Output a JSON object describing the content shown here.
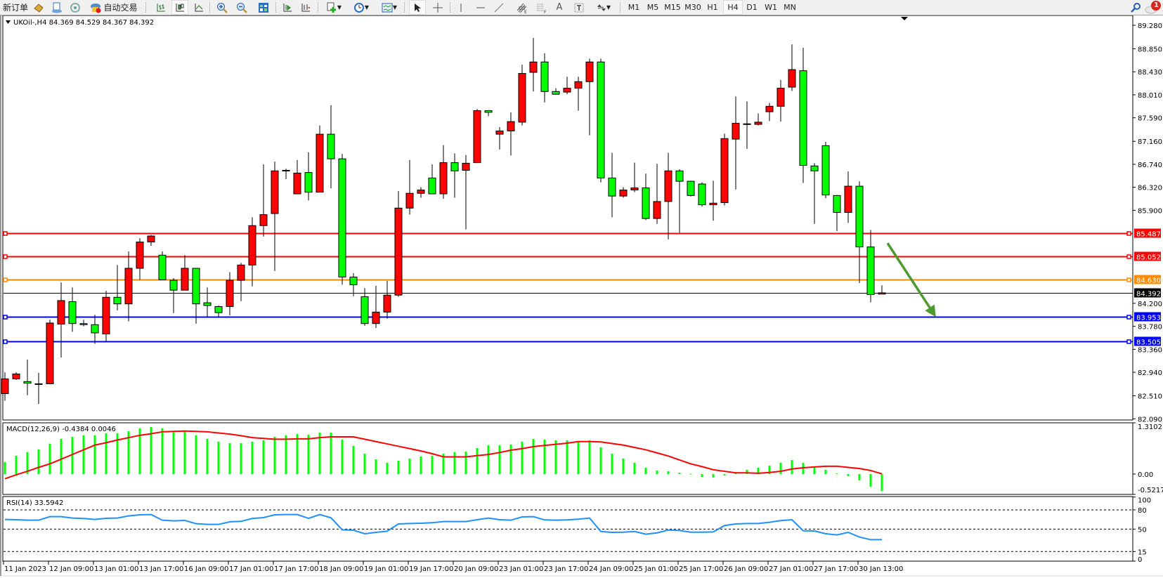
{
  "toolbar": {
    "new_order": "新订单",
    "auto_trading": "自动交易",
    "timeframes": [
      "M1",
      "M5",
      "M15",
      "M30",
      "H1",
      "H4",
      "D1",
      "W1",
      "MN"
    ],
    "selected_timeframe": "H4",
    "notification_count": "1",
    "icons": [
      "market-watch-icon",
      "navigator-icon",
      "signals-icon",
      "autotrading-icon",
      "bar-chart-icon",
      "candlestick-icon",
      "line-chart-icon",
      "zoom-in-icon",
      "zoom-out-icon",
      "tile-windows-icon",
      "auto-scroll-icon",
      "chart-shift-icon",
      "templates-icon",
      "periods-icon",
      "indicators-icon",
      "cursor-icon",
      "crosshair-icon",
      "vertical-line-icon",
      "horizontal-line-icon",
      "trendline-icon",
      "fibonacci-channel-icon",
      "fibonacci-fan-icon",
      "text-icon",
      "text-label-icon",
      "arrows-icon",
      "search-icon",
      "chat-icon"
    ]
  },
  "chart_data": {
    "type": "candlestick",
    "title": "UKOil-,H4  84.369 84.529 84.367 84.392",
    "symbol": "UKOil-",
    "timeframe": "H4",
    "ohlc_format": [
      "open",
      "high",
      "low",
      "close"
    ],
    "colors": {
      "bull": "#FF0000",
      "bear": "#00FF00",
      "outline": "#000000"
    },
    "ylim": [
      82.09,
      89.28
    ],
    "price_ticks": [
      "89.280",
      "88.850",
      "88.430",
      "88.010",
      "87.590",
      "87.160",
      "86.740",
      "86.320",
      "85.900",
      "84.200",
      "83.780",
      "83.360",
      "82.940",
      "82.510",
      "82.090"
    ],
    "x_labels": [
      "11 Jan 2023",
      "12 Jan 09:00",
      "13 Jan 01:00",
      "13 Jan 17:00",
      "16 Jan 09:00",
      "17 Jan 01:00",
      "17 Jan 17:00",
      "18 Jan 09:00",
      "19 Jan 01:00",
      "19 Jan 17:00",
      "20 Jan 09:00",
      "23 Jan 01:00",
      "23 Jan 17:00",
      "24 Jan 09:00",
      "25 Jan 01:00",
      "25 Jan 17:00",
      "26 Jan 09:00",
      "27 Jan 01:00",
      "27 Jan 17:00",
      "30 Jan 13:00"
    ],
    "candles": [
      [
        82.55,
        82.94,
        82.42,
        82.82
      ],
      [
        82.82,
        82.94,
        82.8,
        82.91
      ],
      [
        82.77,
        83.17,
        82.52,
        82.74
      ],
      [
        82.73,
        82.93,
        82.36,
        82.73
      ],
      [
        82.73,
        83.9,
        82.72,
        83.84
      ],
      [
        83.82,
        84.58,
        83.21,
        84.25
      ],
      [
        84.23,
        84.49,
        83.68,
        83.83
      ],
      [
        83.83,
        83.9,
        83.78,
        83.81
      ],
      [
        83.81,
        83.99,
        83.46,
        83.66
      ],
      [
        83.64,
        84.43,
        83.51,
        84.31
      ],
      [
        84.31,
        84.9,
        84.07,
        84.19
      ],
      [
        84.19,
        85.15,
        83.87,
        84.84
      ],
      [
        84.84,
        85.39,
        84.63,
        85.32
      ],
      [
        85.32,
        85.45,
        85.25,
        85.43
      ],
      [
        85.08,
        85.15,
        84.63,
        84.63
      ],
      [
        84.62,
        84.66,
        84.02,
        84.44
      ],
      [
        84.44,
        85.08,
        84.44,
        84.84
      ],
      [
        84.84,
        84.84,
        83.83,
        84.19
      ],
      [
        84.21,
        84.49,
        83.95,
        84.16
      ],
      [
        84.14,
        84.16,
        83.95,
        84.03
      ],
      [
        84.14,
        84.77,
        83.98,
        84.62
      ],
      [
        84.62,
        84.94,
        84.24,
        84.9
      ],
      [
        84.9,
        85.77,
        84.51,
        85.62
      ],
      [
        85.62,
        86.74,
        85.42,
        85.82
      ],
      [
        85.84,
        86.79,
        84.79,
        86.62
      ],
      [
        86.63,
        86.66,
        86.47,
        86.63
      ],
      [
        86.2,
        86.82,
        86.2,
        86.58
      ],
      [
        86.59,
        86.96,
        86.08,
        86.23
      ],
      [
        86.23,
        87.45,
        86.23,
        87.29
      ],
      [
        87.29,
        87.82,
        86.3,
        86.84
      ],
      [
        86.84,
        86.93,
        84.54,
        84.68
      ],
      [
        84.68,
        84.75,
        84.33,
        84.54
      ],
      [
        84.32,
        84.48,
        83.79,
        83.83
      ],
      [
        83.83,
        84.52,
        83.75,
        84.04
      ],
      [
        84.04,
        84.61,
        83.92,
        84.35
      ],
      [
        84.35,
        86.25,
        84.32,
        85.94
      ],
      [
        85.94,
        86.82,
        85.82,
        86.21
      ],
      [
        86.21,
        86.32,
        86.13,
        86.27
      ],
      [
        86.49,
        86.74,
        86.2,
        86.2
      ],
      [
        86.2,
        87.09,
        86.11,
        86.77
      ],
      [
        86.77,
        86.94,
        86.13,
        86.62
      ],
      [
        86.63,
        86.91,
        85.55,
        86.76
      ],
      [
        86.77,
        87.75,
        86.77,
        87.72
      ],
      [
        87.72,
        87.72,
        87.62,
        87.69
      ],
      [
        87.29,
        87.42,
        87.01,
        87.35
      ],
      [
        87.35,
        87.69,
        86.9,
        87.52
      ],
      [
        87.51,
        88.56,
        87.45,
        88.4
      ],
      [
        88.42,
        89.05,
        88.07,
        88.61
      ],
      [
        88.61,
        88.77,
        87.87,
        88.07
      ],
      [
        88.07,
        88.13,
        88.01,
        88.02
      ],
      [
        88.06,
        88.34,
        88.02,
        88.13
      ],
      [
        88.13,
        88.34,
        87.72,
        88.25
      ],
      [
        88.25,
        88.67,
        87.27,
        88.61
      ],
      [
        88.61,
        88.67,
        86.41,
        86.49
      ],
      [
        86.49,
        86.95,
        85.77,
        86.16
      ],
      [
        86.16,
        86.32,
        86.13,
        86.27
      ],
      [
        86.27,
        86.77,
        86.23,
        86.31
      ],
      [
        86.31,
        86.57,
        85.72,
        85.75
      ],
      [
        85.75,
        86.75,
        85.65,
        86.06
      ],
      [
        86.06,
        86.95,
        85.37,
        86.62
      ],
      [
        86.62,
        86.65,
        85.49,
        86.43
      ],
      [
        86.43,
        86.44,
        86.15,
        86.17
      ],
      [
        86.38,
        86.41,
        85.97,
        86.0
      ],
      [
        86.0,
        86.44,
        85.71,
        86.03
      ],
      [
        86.04,
        87.3,
        85.99,
        87.21
      ],
      [
        87.2,
        87.98,
        86.28,
        87.49
      ],
      [
        87.48,
        87.89,
        87.02,
        87.48
      ],
      [
        87.47,
        87.67,
        87.45,
        87.51
      ],
      [
        87.7,
        87.86,
        87.53,
        87.8
      ],
      [
        87.8,
        88.28,
        87.52,
        88.13
      ],
      [
        88.15,
        88.93,
        88.08,
        88.47
      ],
      [
        88.45,
        88.87,
        86.4,
        86.72
      ],
      [
        86.71,
        86.76,
        85.65,
        86.62
      ],
      [
        87.08,
        87.15,
        86.12,
        86.18
      ],
      [
        86.17,
        86.18,
        85.52,
        85.86
      ],
      [
        85.86,
        86.61,
        85.67,
        86.34
      ],
      [
        86.34,
        86.43,
        84.57,
        85.23
      ],
      [
        85.23,
        85.54,
        84.22,
        84.36
      ],
      [
        84.369,
        84.529,
        84.367,
        84.392
      ]
    ],
    "levels": [
      {
        "price": "85.487",
        "color": "#FF0000"
      },
      {
        "price": "85.052",
        "color": "#FF0000"
      },
      {
        "price": "84.630",
        "color": "#FF8C00"
      },
      {
        "price": "84.392",
        "color": "#000000",
        "kind": "bid"
      },
      {
        "price": "83.953",
        "color": "#0000FF"
      },
      {
        "price": "83.505",
        "color": "#0000FF"
      }
    ],
    "annotation_arrow": {
      "color": "#4E9A2E",
      "direction": "down-right",
      "from": {
        "bar": 78.5,
        "price": 85.3
      },
      "to": {
        "bar": 82.8,
        "price": 83.95
      }
    },
    "macd": {
      "label": "MACD(12,26,9) -0.4384 0.0046",
      "ylim": [
        -0.5217,
        1.3102
      ],
      "ticks": [
        "1.3102",
        "0.00",
        "-0.5217"
      ],
      "histogram_color": "#00FF00",
      "signal_color": "#FF0000",
      "histogram": [
        0.305,
        0.467,
        0.557,
        0.629,
        0.773,
        0.899,
        0.952,
        0.988,
        0.988,
        1.042,
        1.042,
        1.096,
        1.168,
        1.204,
        1.168,
        1.096,
        1.096,
        0.988,
        0.899,
        0.827,
        0.791,
        0.791,
        0.827,
        0.863,
        0.952,
        0.988,
        1.024,
        1.006,
        1.06,
        1.06,
        0.881,
        0.719,
        0.521,
        0.377,
        0.288,
        0.341,
        0.395,
        0.449,
        0.467,
        0.521,
        0.557,
        0.575,
        0.665,
        0.737,
        0.737,
        0.755,
        0.827,
        0.899,
        0.881,
        0.863,
        0.863,
        0.827,
        0.863,
        0.683,
        0.521,
        0.395,
        0.288,
        0.162,
        0.09,
        0.072,
        0.036,
        0.006,
        -0.072,
        -0.09,
        -0.036,
        0.018,
        0.108,
        0.162,
        0.216,
        0.288,
        0.359,
        0.288,
        0.198,
        0.108,
        0.018,
        -0.054,
        -0.162,
        -0.323,
        -0.4384
      ],
      "signal": [
        -0.12,
        -0.02,
        0.07,
        0.17,
        0.26,
        0.38,
        0.5,
        0.62,
        0.74,
        0.8,
        0.87,
        0.93,
        0.99,
        1.03,
        1.08,
        1.09,
        1.1,
        1.09,
        1.08,
        1.05,
        1.02,
        0.98,
        0.93,
        0.91,
        0.89,
        0.89,
        0.9,
        0.9,
        0.93,
        0.95,
        0.95,
        0.95,
        0.89,
        0.83,
        0.77,
        0.71,
        0.65,
        0.59,
        0.52,
        0.44,
        0.44,
        0.44,
        0.47,
        0.5,
        0.55,
        0.61,
        0.65,
        0.7,
        0.73,
        0.76,
        0.79,
        0.83,
        0.83,
        0.82,
        0.78,
        0.74,
        0.68,
        0.62,
        0.54,
        0.46,
        0.36,
        0.26,
        0.19,
        0.11,
        0.07,
        0.03,
        0.03,
        0.02,
        0.04,
        0.07,
        0.13,
        0.16,
        0.18,
        0.2,
        0.2,
        0.17,
        0.14,
        0.09,
        0.0046
      ]
    },
    "rsi": {
      "label": "RSI(14) 33.5942",
      "ylim": [
        0,
        100
      ],
      "ticks": [
        "100",
        "80",
        "50",
        "15",
        "0"
      ],
      "levels": [
        80,
        50,
        15
      ],
      "color": "#1E90FF",
      "values": [
        65.0,
        64.6,
        63.9,
        63.9,
        69.4,
        69.4,
        67.2,
        66.5,
        65.0,
        66.8,
        67.2,
        70.5,
        72.3,
        72.7,
        63.9,
        62.8,
        63.5,
        58.4,
        57.3,
        57.3,
        61.3,
        62.1,
        66.5,
        67.9,
        72.3,
        72.7,
        72.7,
        66.8,
        72.7,
        67.6,
        48.9,
        48.2,
        42.7,
        44.9,
        46.7,
        58.0,
        58.8,
        59.1,
        59.9,
        61.7,
        61.7,
        61.7,
        64.6,
        67.2,
        64.6,
        63.9,
        69.0,
        69.4,
        64.3,
        63.9,
        64.3,
        65.4,
        67.2,
        46.3,
        44.9,
        45.2,
        46.3,
        42.0,
        44.1,
        48.5,
        47.8,
        45.2,
        45.2,
        45.6,
        55.5,
        58.0,
        58.8,
        58.8,
        60.6,
        63.2,
        64.6,
        47.4,
        47.1,
        42.7,
        40.9,
        44.9,
        37.6,
        33.5,
        33.5942
      ]
    }
  }
}
